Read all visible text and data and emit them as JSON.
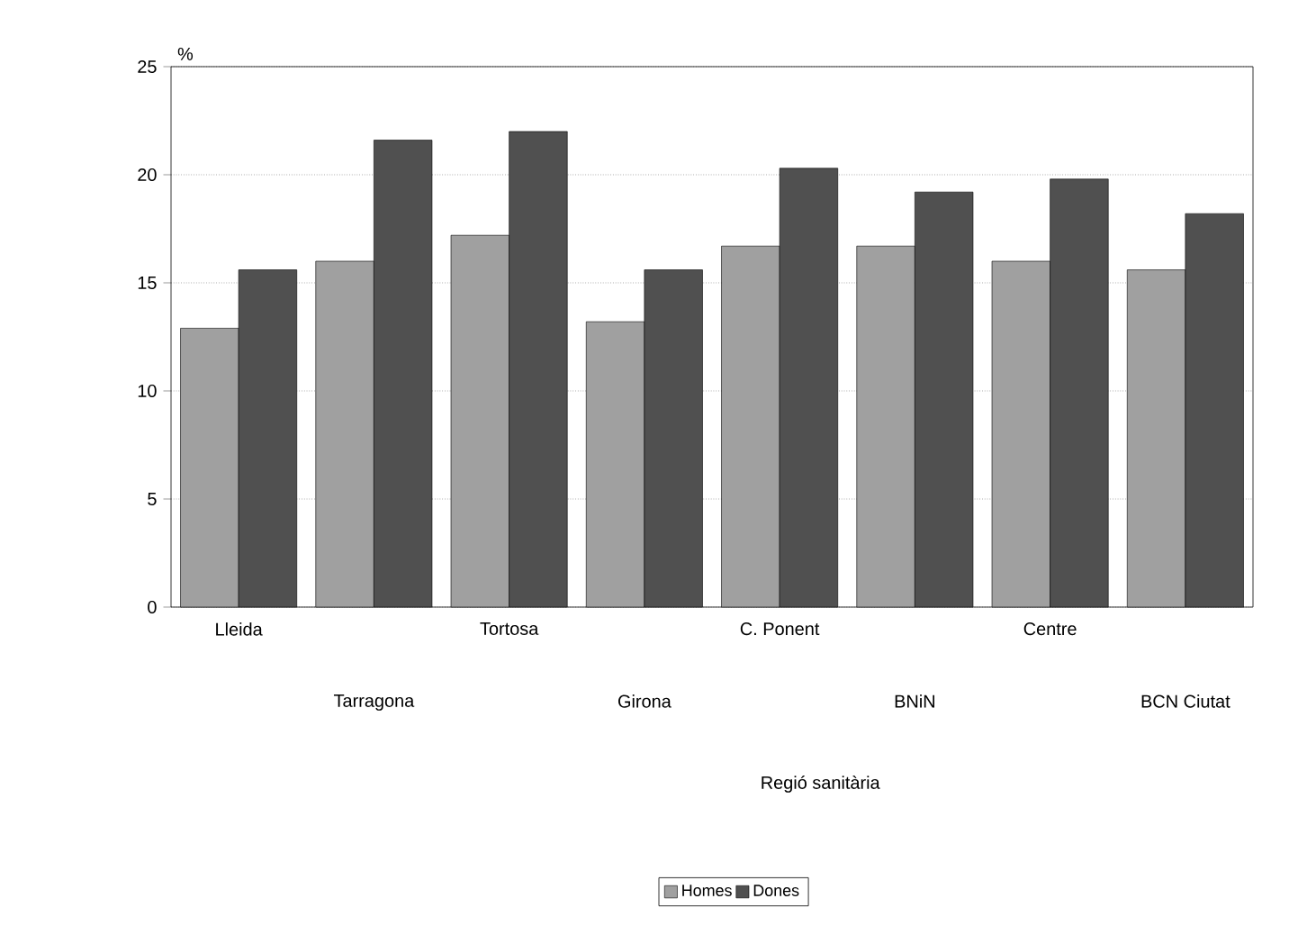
{
  "chart_data": {
    "type": "bar",
    "xlabel": "Regió sanitària",
    "ylabel": "%",
    "categories": [
      "Lleida",
      "Tarragona",
      "Tortosa",
      "Girona",
      "C. Ponent",
      "BNiN",
      "Centre",
      "BCN Ciutat"
    ],
    "series": [
      {
        "name": "Homes",
        "color": "#a0a0a0",
        "values": [
          12.9,
          16.0,
          17.2,
          13.2,
          16.7,
          16.7,
          16.0,
          15.6
        ]
      },
      {
        "name": "Dones",
        "color": "#505050",
        "values": [
          15.6,
          21.6,
          22.0,
          15.6,
          20.3,
          19.2,
          19.8,
          18.2
        ]
      }
    ],
    "ylim": [
      0,
      25
    ],
    "yticks": [
      0,
      5,
      10,
      15,
      20,
      25
    ],
    "grid": "y",
    "legend": "bottom"
  }
}
